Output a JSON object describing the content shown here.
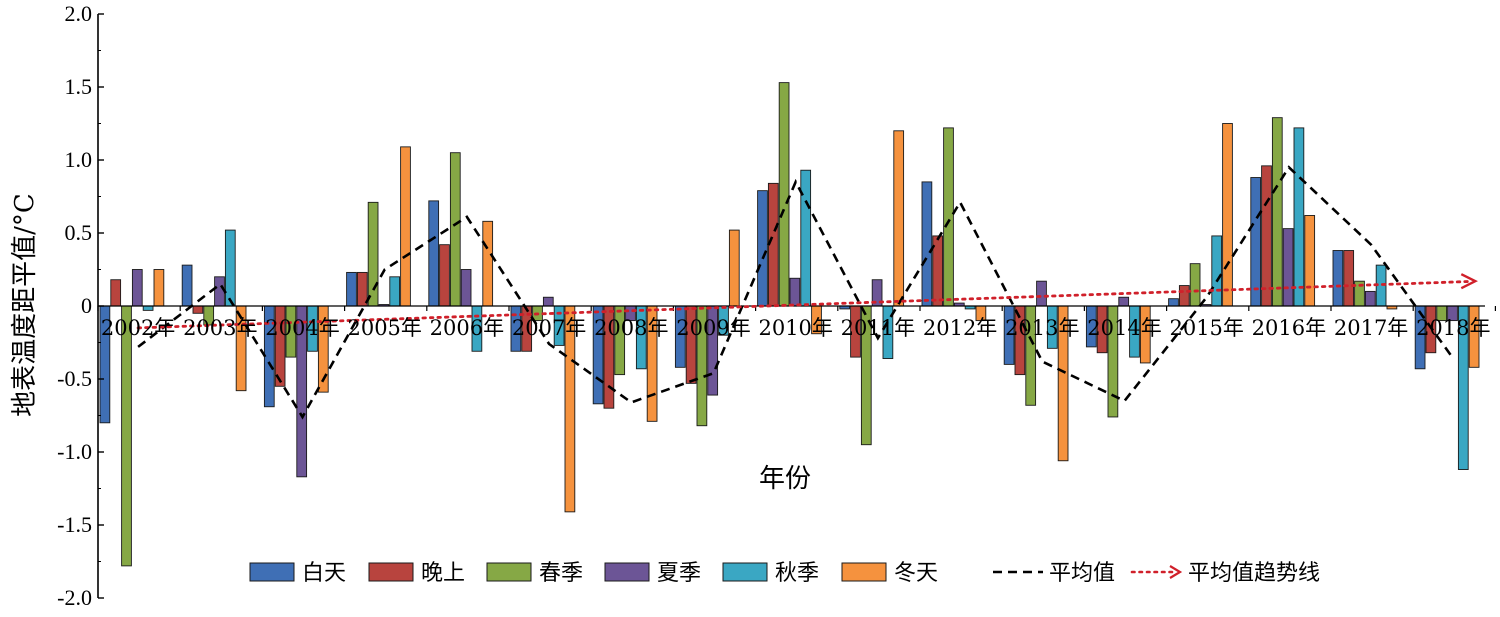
{
  "chart_data": {
    "type": "bar",
    "title": "",
    "xlabel": "年份",
    "ylabel": "地表温度距平值/°C",
    "ylim": [
      -2.0,
      2.0
    ],
    "yticks": [
      "2.0",
      "1.5",
      "1.0",
      "0.5",
      "0",
      "-0.5",
      "-1.0",
      "-1.5",
      "-2.0"
    ],
    "ytick_values": [
      2.0,
      1.5,
      1.0,
      0.5,
      0,
      -0.5,
      -1.0,
      -1.5,
      -2.0
    ],
    "grid": false,
    "legend_position": "bottom",
    "categories": [
      "2002年",
      "2003年",
      "2004年",
      "2005年",
      "2006年",
      "2007年",
      "2008年",
      "2009年",
      "2010年",
      "2011年",
      "2012年",
      "2013年",
      "2014年",
      "2015年",
      "2016年",
      "2017年",
      "2018年"
    ],
    "series": [
      {
        "name": "白天",
        "color": "#3f6fb5",
        "values": [
          -0.8,
          0.28,
          -0.69,
          0.23,
          0.72,
          -0.31,
          -0.67,
          -0.42,
          0.79,
          -0.02,
          0.85,
          -0.4,
          -0.28,
          0.05,
          0.88,
          0.38,
          -0.43
        ]
      },
      {
        "name": "晚上",
        "color": "#b8443e",
        "values": [
          0.18,
          -0.05,
          -0.55,
          0.23,
          0.42,
          -0.31,
          -0.7,
          -0.53,
          0.84,
          -0.35,
          0.48,
          -0.47,
          -0.32,
          0.14,
          0.96,
          0.38,
          -0.32
        ]
      },
      {
        "name": "春季",
        "color": "#86a845",
        "values": [
          -1.78,
          -0.13,
          -0.35,
          0.71,
          1.05,
          -0.1,
          -0.47,
          -0.82,
          1.53,
          -0.95,
          1.22,
          -0.68,
          -0.76,
          0.29,
          1.29,
          0.17,
          -0.1
        ]
      },
      {
        "name": "夏季",
        "color": "#6c5596",
        "values": [
          0.25,
          0.2,
          -1.17,
          0.01,
          0.25,
          0.06,
          -0.1,
          -0.61,
          0.19,
          0.18,
          0.02,
          0.17,
          0.06,
          0.01,
          0.53,
          0.1,
          -0.1
        ]
      },
      {
        "name": "秋季",
        "color": "#3aa7c3",
        "values": [
          -0.03,
          0.52,
          -0.31,
          0.2,
          -0.31,
          -0.27,
          -0.43,
          -0.2,
          0.93,
          -0.36,
          -0.02,
          -0.29,
          -0.35,
          0.48,
          1.22,
          0.28,
          -1.12
        ]
      },
      {
        "name": "冬天",
        "color": "#f5923e",
        "values": [
          0.25,
          -0.58,
          -0.59,
          1.09,
          0.58,
          -1.41,
          -0.79,
          0.52,
          -0.19,
          1.2,
          -0.1,
          -1.06,
          -0.39,
          1.25,
          0.62,
          -0.02,
          -0.42
        ]
      }
    ],
    "mean_line": {
      "name": "平均值",
      "color": "#000000",
      "style": "dashed",
      "values": [
        -0.28,
        0.15,
        -0.76,
        0.25,
        0.61,
        -0.26,
        -0.66,
        -0.46,
        0.85,
        -0.22,
        0.71,
        -0.38,
        -0.65,
        0.06,
        0.95,
        0.42,
        -0.36
      ]
    },
    "trend_line": {
      "name": "平均值趋势线",
      "color": "#d0202a",
      "style": "dotted-arrow",
      "start": -0.15,
      "end": 0.17
    }
  }
}
